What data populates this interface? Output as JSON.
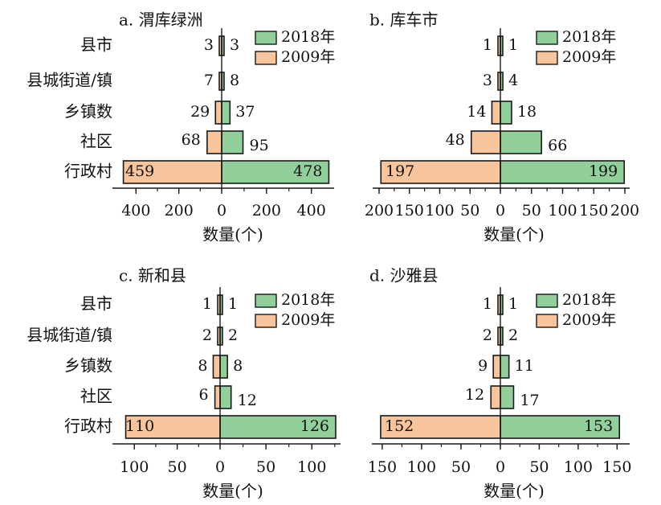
{
  "chart_data": [
    {
      "type": "bar",
      "orientation": "horizontal-butterfly",
      "title": "a. 渭库绿洲",
      "xlabel": "数量(个)",
      "categories": [
        "县市",
        "县城街道/镇",
        "乡镇数",
        "社区",
        "行政村"
      ],
      "series": [
        {
          "name": "2018年",
          "values": [
            3,
            8,
            37,
            95,
            478
          ]
        },
        {
          "name": "2009年",
          "values": [
            3,
            7,
            29,
            68,
            459
          ]
        }
      ],
      "xlim": [
        -480,
        480
      ],
      "ticks": [
        -400,
        -200,
        0,
        200,
        400
      ],
      "tick_labels": [
        "400",
        "200",
        "0",
        "200",
        "400"
      ],
      "legend_position": "top-right"
    },
    {
      "type": "bar",
      "orientation": "horizontal-butterfly",
      "title": "b. 库车市",
      "xlabel": "数量(个)",
      "categories": [
        "县市",
        "县城街道/镇",
        "乡镇数",
        "社区",
        "行政村"
      ],
      "series": [
        {
          "name": "2018年",
          "values": [
            1,
            4,
            18,
            66,
            199
          ]
        },
        {
          "name": "2009年",
          "values": [
            1,
            3,
            14,
            48,
            197
          ]
        }
      ],
      "xlim": [
        -200,
        200
      ],
      "ticks": [
        -200,
        -150,
        -100,
        -50,
        0,
        50,
        100,
        150,
        200
      ],
      "tick_labels": [
        "200",
        "150",
        "100",
        "50",
        "0",
        "50",
        "100",
        "150",
        "200"
      ],
      "legend_position": "top-right"
    },
    {
      "type": "bar",
      "orientation": "horizontal-butterfly",
      "title": "c. 新和县",
      "xlabel": "数量(个)",
      "categories": [
        "县市",
        "县城街道/镇",
        "乡镇数",
        "社区",
        "行政村"
      ],
      "series": [
        {
          "name": "2018年",
          "values": [
            1,
            2,
            8,
            12,
            126
          ]
        },
        {
          "name": "2009年",
          "values": [
            1,
            2,
            8,
            6,
            110
          ]
        }
      ],
      "xlim": [
        -118,
        126
      ],
      "ticks": [
        -100,
        -50,
        0,
        50,
        100
      ],
      "tick_labels": [
        "100",
        "50",
        "0",
        "50",
        "100"
      ],
      "legend_position": "top-right"
    },
    {
      "type": "bar",
      "orientation": "horizontal-butterfly",
      "title": "d. 沙雅县",
      "xlabel": "数量(个)",
      "categories": [
        "县市",
        "县城街道/镇",
        "乡镇数",
        "社区",
        "行政村"
      ],
      "series": [
        {
          "name": "2018年",
          "values": [
            1,
            2,
            11,
            17,
            153
          ]
        },
        {
          "name": "2009年",
          "values": [
            1,
            2,
            9,
            12,
            152
          ]
        }
      ],
      "xlim": [
        -155,
        160
      ],
      "ticks": [
        -150,
        -100,
        -50,
        0,
        50,
        100,
        150
      ],
      "tick_labels": [
        "150",
        "100",
        "50",
        "0",
        "50",
        "100",
        "150"
      ],
      "legend_position": "top-right"
    }
  ],
  "colors": {
    "series_2018": "#92d09b",
    "series_2009": "#f7c49b",
    "stroke": "#1a1a1a"
  }
}
